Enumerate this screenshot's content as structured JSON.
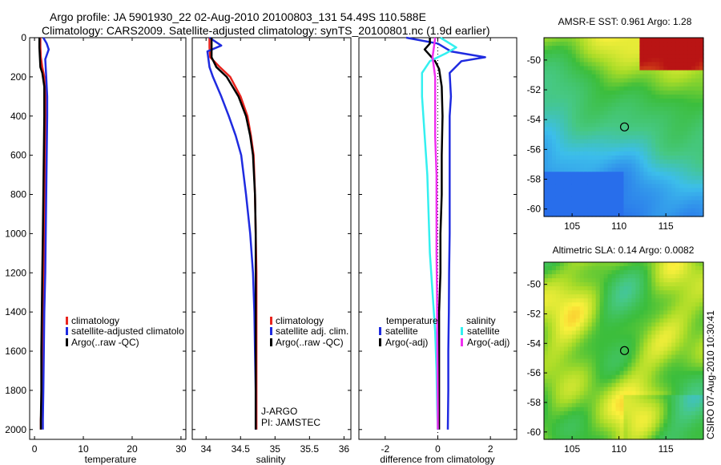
{
  "header": {
    "line1": "Argo profile: JA 5901930_22 02-Aug-2010 20100803_131 54.49S 110.588E",
    "line2": "Climatology: CARS2009. Satellite-adjusted climatology: synTS_20100801.nc (1.9d earlier)"
  },
  "credit": "CSIRO 07-Aug-2010 10:30:41",
  "colors": {
    "red": "#e8251f",
    "blue": "#1f2be0",
    "black": "#000000",
    "cyan": "#33f0f0",
    "magenta": "#f030f0"
  },
  "chart_data": [
    {
      "type": "line",
      "id": "temperature",
      "xlabel": "temperature",
      "xlim": [
        -1,
        31
      ],
      "ylim": [
        0,
        2050
      ],
      "y_reversed": true,
      "xticks": [
        0,
        10,
        20,
        30
      ],
      "yticks": [
        0,
        200,
        400,
        600,
        800,
        1000,
        1200,
        1400,
        1600,
        1800,
        2000
      ],
      "legend": [
        "climatology",
        "satellite-adjusted climatolo",
        "Argo(..raw -QC)"
      ],
      "series": [
        {
          "name": "climatology",
          "color": "red",
          "x": [
            1.2,
            1.2,
            1.3,
            1.6,
            2.0,
            2.3,
            2.3,
            2.2,
            2.1,
            2.0,
            1.9,
            1.7,
            1.6,
            1.5,
            1.4,
            1.3,
            1.3
          ],
          "y": [
            0,
            50,
            100,
            150,
            200,
            300,
            400,
            600,
            800,
            1000,
            1200,
            1400,
            1600,
            1800,
            1900,
            1950,
            2000
          ]
        },
        {
          "name": "satellite-adjusted climatology",
          "color": "blue",
          "x": [
            1.8,
            2.5,
            2.9,
            2.2,
            2.4,
            2.6,
            2.6,
            2.5,
            2.4,
            2.3,
            2.2,
            2.0,
            1.9,
            1.8,
            1.7,
            1.7
          ],
          "y": [
            0,
            30,
            60,
            110,
            200,
            300,
            400,
            600,
            800,
            1000,
            1200,
            1400,
            1600,
            1800,
            1950,
            2000
          ]
        },
        {
          "name": "Argo(..raw -QC)",
          "color": "black",
          "x": [
            1.0,
            1.0,
            1.1,
            1.2,
            1.6,
            2.0,
            2.0,
            1.9,
            1.8,
            1.7,
            1.6,
            1.5,
            1.4,
            1.4,
            1.3,
            1.3
          ],
          "y": [
            0,
            50,
            100,
            150,
            180,
            250,
            400,
            600,
            800,
            1000,
            1200,
            1400,
            1600,
            1800,
            1950,
            2000
          ]
        }
      ]
    },
    {
      "type": "line",
      "id": "salinity",
      "xlabel": "salinity",
      "xlim": [
        33.8,
        36.1
      ],
      "ylim": [
        0,
        2050
      ],
      "y_reversed": true,
      "xticks": [
        34,
        34.5,
        35,
        35.5,
        36
      ],
      "legend": [
        "climatology",
        "satellite adj. clim.",
        "Argo(..raw -QC)"
      ],
      "annotations": [
        "J-ARGO",
        "PI: JAMSTEC"
      ],
      "series": [
        {
          "name": "climatology",
          "color": "red",
          "x": [
            34.05,
            34.05,
            34.06,
            34.2,
            34.35,
            34.5,
            34.6,
            34.65,
            34.69,
            34.71,
            34.72,
            34.73,
            34.73,
            34.73,
            34.73
          ],
          "y": [
            0,
            50,
            100,
            150,
            200,
            300,
            400,
            500,
            600,
            800,
            1000,
            1200,
            1500,
            1800,
            2000
          ]
        },
        {
          "name": "satellite adj. clim.",
          "color": "blue",
          "x": [
            34.05,
            34.22,
            34.02,
            34.05,
            34.1,
            34.22,
            34.33,
            34.43,
            34.51,
            34.58,
            34.64,
            34.68,
            34.7,
            34.71,
            34.72,
            34.72
          ],
          "y": [
            0,
            40,
            70,
            150,
            200,
            300,
            400,
            500,
            600,
            800,
            1000,
            1200,
            1400,
            1600,
            1800,
            2000
          ]
        },
        {
          "name": "Argo(..raw -QC)",
          "color": "black",
          "x": [
            34.08,
            34.08,
            34.08,
            34.15,
            34.3,
            34.47,
            34.58,
            34.64,
            34.68,
            34.71,
            34.72,
            34.72,
            34.72,
            34.72
          ],
          "y": [
            0,
            50,
            100,
            150,
            200,
            300,
            400,
            500,
            600,
            800,
            1000,
            1300,
            1600,
            2000
          ]
        }
      ]
    },
    {
      "type": "line",
      "id": "difference",
      "xlabel": "difference from climatology",
      "xlim": [
        -3,
        3
      ],
      "ylim": [
        0,
        2050
      ],
      "y_reversed": true,
      "xticks": [
        -2,
        0,
        2
      ],
      "zero_line": true,
      "legend_titles": [
        "temperature",
        "salinity"
      ],
      "legend_left": [
        "satellite",
        "Argo(-adj)"
      ],
      "legend_right": [
        "satellite",
        "Argo(-adj)"
      ],
      "series": [
        {
          "name": "temperature satellite",
          "color": "blue",
          "x": [
            -1.2,
            0.0,
            0.5,
            1.8,
            0.9,
            0.45,
            0.5,
            0.45,
            0.45,
            0.45,
            0.45,
            0.43,
            0.42,
            0.4,
            0.4,
            0.38
          ],
          "y": [
            0,
            30,
            70,
            100,
            120,
            180,
            300,
            400,
            600,
            800,
            1000,
            1200,
            1400,
            1600,
            1800,
            2000
          ]
        },
        {
          "name": "temperature Argo(-adj)",
          "color": "black",
          "x": [
            -0.3,
            -0.3,
            -0.5,
            -0.1,
            0.05,
            0.15,
            0.18,
            0.15,
            0.15,
            0.1,
            0.1,
            0.05,
            0.05,
            0.05,
            0.05
          ],
          "y": [
            0,
            30,
            60,
            120,
            160,
            250,
            400,
            600,
            800,
            1000,
            1200,
            1400,
            1600,
            1800,
            2000
          ]
        },
        {
          "name": "salinity satellite",
          "color": "cyan",
          "x": [
            0.1,
            0.7,
            0.3,
            -0.3,
            -0.6,
            -0.6,
            -0.5,
            -0.4,
            -0.35,
            -0.3,
            -0.2,
            -0.1,
            -0.05,
            -0.02,
            0.0
          ],
          "y": [
            0,
            50,
            80,
            120,
            180,
            300,
            500,
            700,
            900,
            1100,
            1300,
            1500,
            1700,
            1900,
            2000
          ]
        },
        {
          "name": "salinity Argo(-adj)",
          "color": "magenta",
          "x": [
            -0.1,
            -0.15,
            -0.2,
            -0.15,
            -0.1,
            -0.1,
            -0.1,
            -0.05,
            -0.05,
            -0.05,
            -0.03,
            -0.02,
            -0.01,
            0.0,
            0.0
          ],
          "y": [
            0,
            50,
            100,
            150,
            200,
            300,
            500,
            700,
            900,
            1100,
            1300,
            1500,
            1700,
            1900,
            2000
          ]
        }
      ]
    },
    {
      "type": "heatmap",
      "id": "sst",
      "title": "AMSR-E SST: 0.961 Argo: 1.28",
      "xlim": [
        102,
        119
      ],
      "ylim": [
        -60.5,
        -48.5
      ],
      "xticks": [
        105,
        110,
        115
      ],
      "xtick_labels": [
        "105",
        "110",
        "115"
      ],
      "yticks": [
        -50,
        -52,
        -54,
        -56,
        -58,
        -60
      ],
      "ytick_labels": [
        "-50",
        "-52",
        "-54",
        "-56",
        "-58",
        "-60"
      ],
      "marker": {
        "lon": 110.588,
        "lat": -54.49
      }
    },
    {
      "type": "heatmap",
      "id": "sla",
      "title": "Altimetric SLA: 0.14 Argo: 0.0082",
      "xlim": [
        102,
        119
      ],
      "ylim": [
        -60.5,
        -48.5
      ],
      "xticks": [
        105,
        110,
        115
      ],
      "xtick_labels": [
        "105",
        "110",
        "115"
      ],
      "yticks": [
        -50,
        -52,
        -54,
        -56,
        -58,
        -60
      ],
      "ytick_labels": [
        "-50",
        "-52",
        "-54",
        "-56",
        "-58",
        "-60"
      ],
      "marker": {
        "lon": 110.588,
        "lat": -54.49
      }
    }
  ]
}
